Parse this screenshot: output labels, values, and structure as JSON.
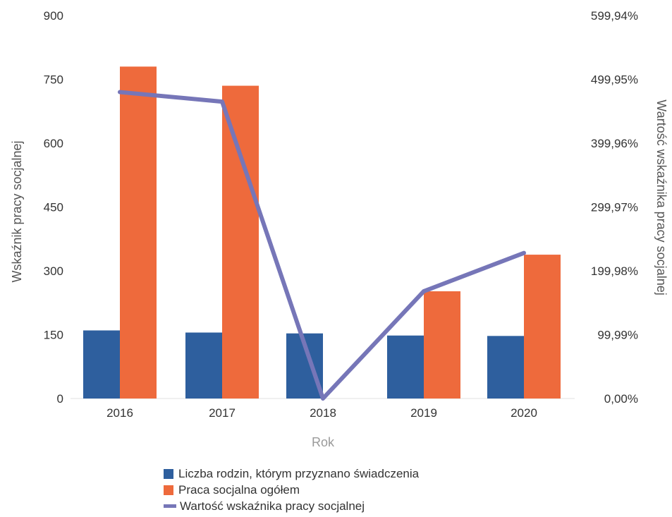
{
  "chart_data": {
    "type": "bar",
    "categories": [
      "2016",
      "2017",
      "2018",
      "2019",
      "2020"
    ],
    "series": [
      {
        "name": "Liczba rodzin, którym przyznano świadczenia",
        "type": "bar",
        "axis": "left",
        "color": "#2e5f9e",
        "values": [
          160,
          155,
          153,
          148,
          147
        ]
      },
      {
        "name": "Praca socjalna ogółem",
        "type": "bar",
        "axis": "left",
        "color": "#ee6a3c",
        "values": [
          780,
          735,
          0,
          252,
          338
        ]
      },
      {
        "name": "Wartość wskaźnika pracy socjalnej",
        "type": "line",
        "axis": "right",
        "color": "#7676b8",
        "values": [
          480,
          465,
          0,
          168,
          228
        ]
      }
    ],
    "xlabel": "Rok",
    "ylabel": "Wskaźnik pracy socjalnej",
    "y2label": "Wartość wskaźnika pracy socjalnej",
    "ylim": [
      0,
      900
    ],
    "y2lim": [
      0,
      599.94
    ],
    "yticks": [
      "0",
      "150",
      "300",
      "450",
      "600",
      "750",
      "900"
    ],
    "y2ticks": [
      "0,00%",
      "99,99%",
      "199,98%",
      "299,97%",
      "399,96%",
      "499,95%",
      "599,94%"
    ],
    "legend_position": "bottom",
    "grid": false
  }
}
